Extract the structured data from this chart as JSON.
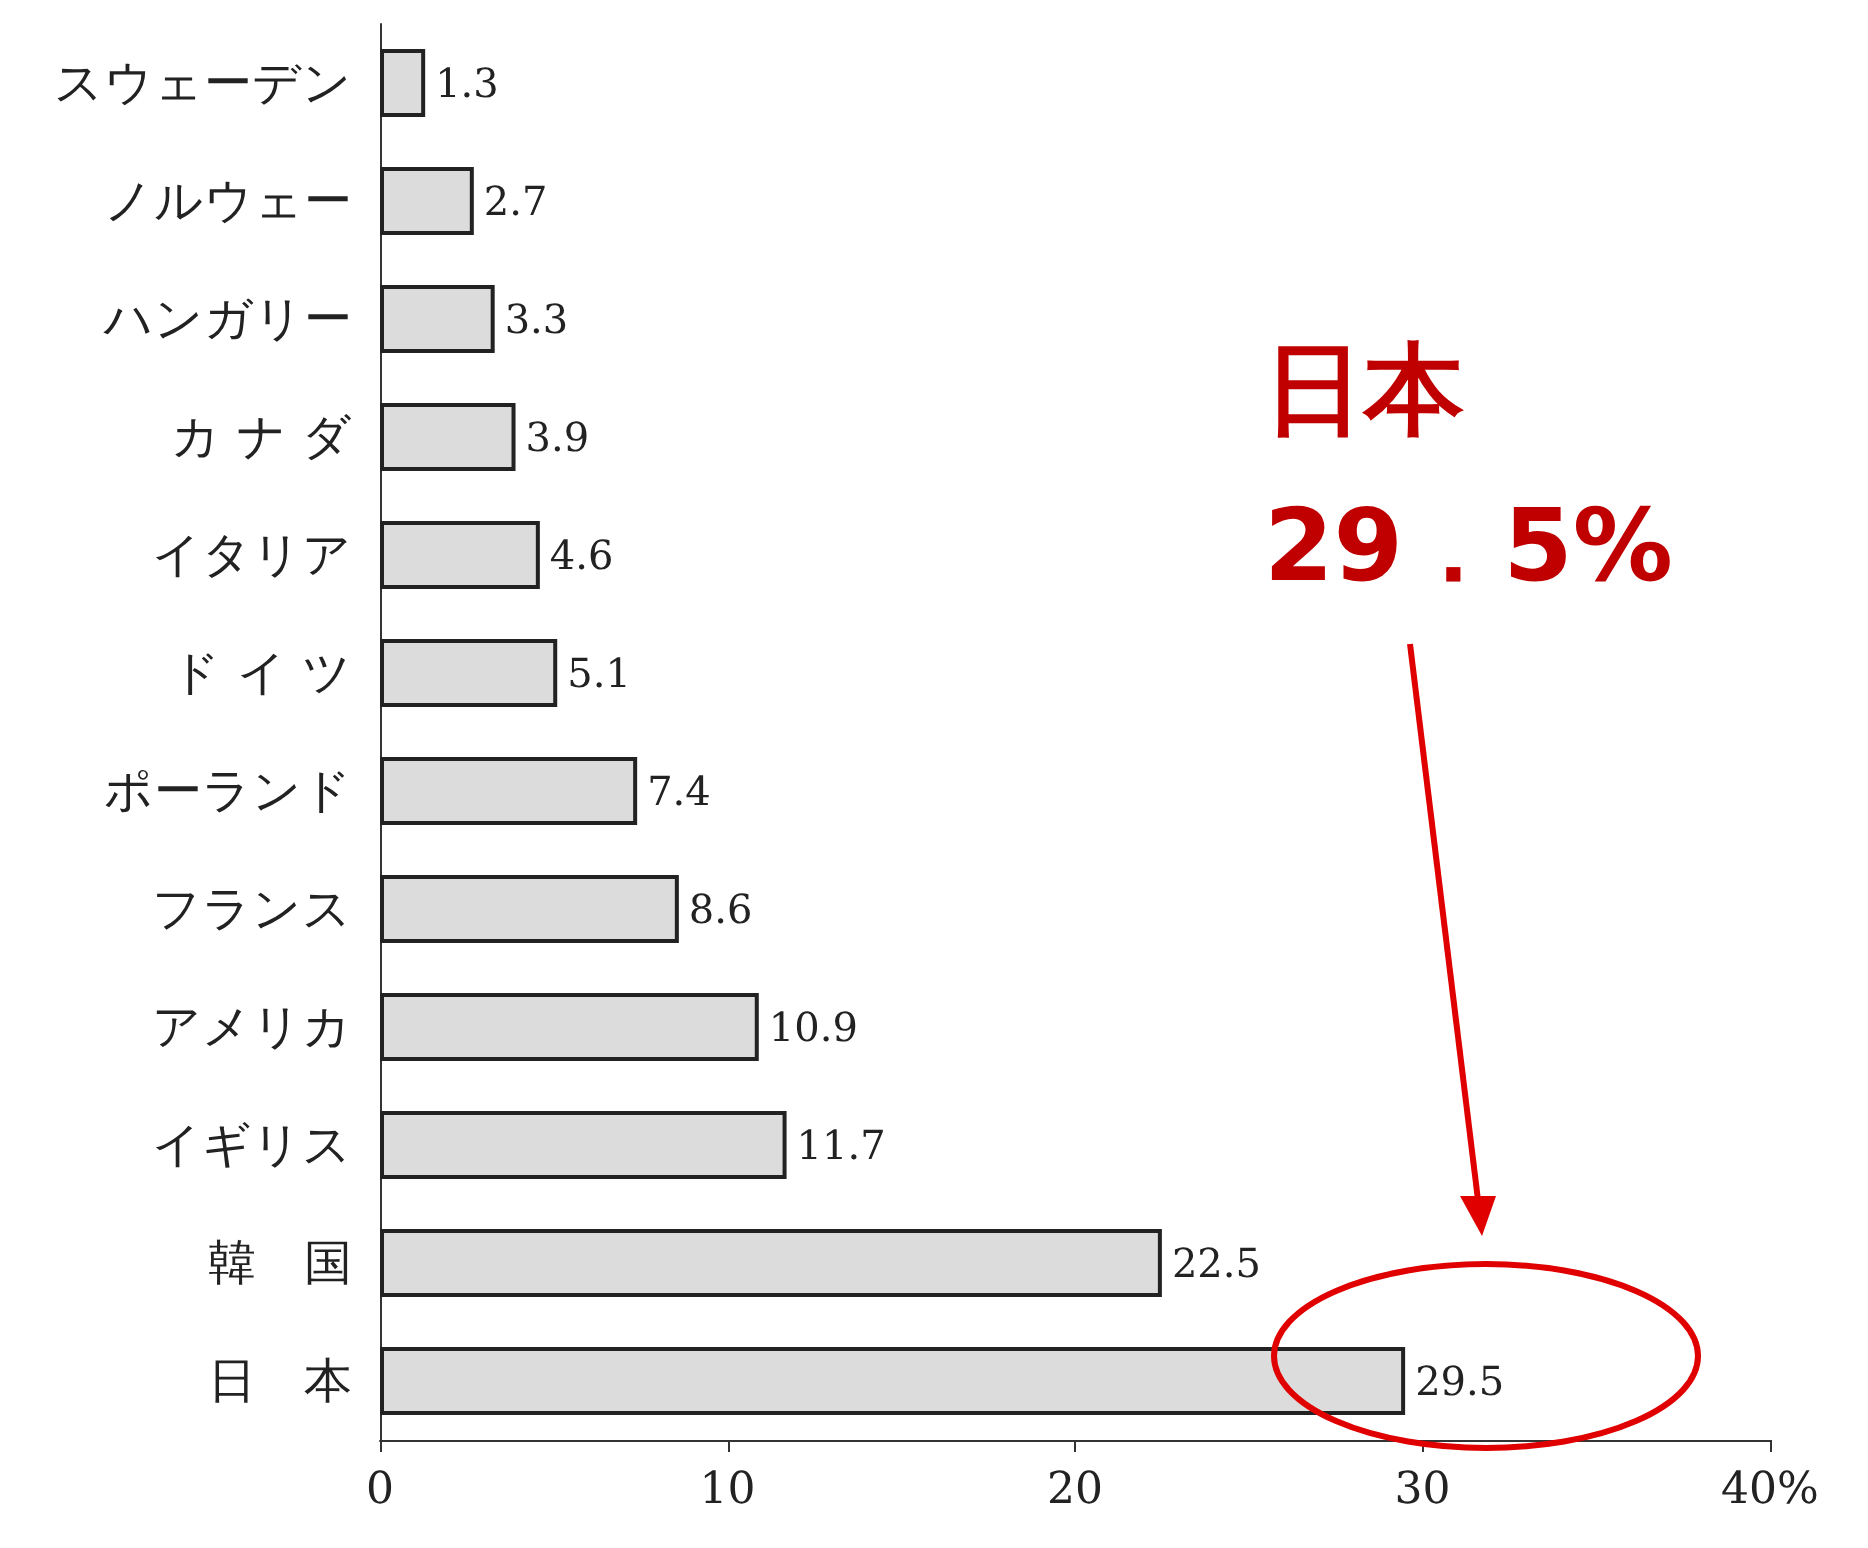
{
  "chart_data": {
    "type": "bar",
    "orientation": "horizontal",
    "categories": [
      "スウェーデン",
      "ノルウェー",
      "ハンガリー",
      "カ ナ ダ",
      "イタリア",
      "ド イ ツ",
      "ポーランド",
      "フランス",
      "アメリカ",
      "イギリス",
      "韓　国",
      "日　本"
    ],
    "values": [
      1.3,
      2.7,
      3.3,
      3.9,
      4.6,
      5.1,
      7.4,
      8.6,
      10.9,
      11.7,
      22.5,
      29.5
    ],
    "color": "#dcdcdc",
    "xlim": [
      0,
      40
    ],
    "xticks": [
      0,
      10,
      20,
      30,
      {
        "value": 40,
        "label": "40%"
      }
    ],
    "data_labels": true,
    "annotations": [
      "日本",
      "29．5%"
    ]
  }
}
